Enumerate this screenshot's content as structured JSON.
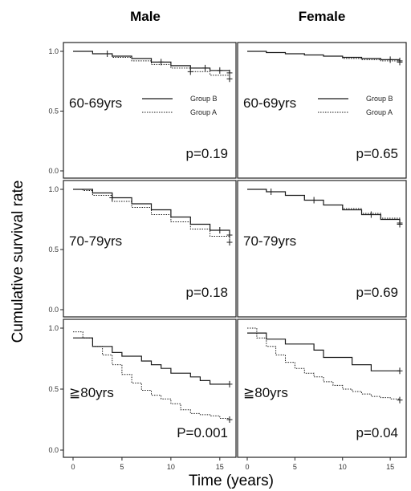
{
  "figure": {
    "column_titles": [
      "Male",
      "Female"
    ],
    "ylabel": "Cumulative survival rate",
    "xlabel": "Time (years)",
    "x_ticks": [
      "0",
      "5",
      "10",
      "15"
    ],
    "y_ticks": [
      "0.0",
      "0.5",
      "1.0"
    ]
  },
  "colors": {
    "line": "#1a1a1a",
    "frame": "#222222",
    "background": "#ffffff"
  },
  "chart_data": [
    {
      "type": "line",
      "panel": "male-60-69",
      "age_label": "60-69yrs",
      "p_label": "p=0.19",
      "show_legend": true,
      "legend": [
        "Group B",
        "Group A"
      ],
      "xlim": [
        0,
        16
      ],
      "ylim": [
        0,
        1
      ],
      "series": [
        {
          "name": "Group B",
          "style": "solid",
          "x": [
            0,
            2,
            4,
            6,
            8,
            10,
            12,
            14,
            16
          ],
          "y": [
            1.0,
            0.98,
            0.96,
            0.94,
            0.91,
            0.88,
            0.86,
            0.84,
            0.82
          ],
          "censor_x": [
            3.5,
            9,
            13.5,
            15,
            16
          ]
        },
        {
          "name": "Group A",
          "style": "dotted",
          "x": [
            0,
            2,
            4,
            6,
            8,
            10,
            12,
            14,
            16
          ],
          "y": [
            1.0,
            0.98,
            0.95,
            0.92,
            0.89,
            0.86,
            0.83,
            0.8,
            0.77
          ],
          "censor_x": [
            12,
            16
          ]
        }
      ]
    },
    {
      "type": "line",
      "panel": "female-60-69",
      "age_label": "60-69yrs",
      "p_label": "p=0.65",
      "show_legend": true,
      "legend": [
        "Group B",
        "Group A"
      ],
      "xlim": [
        0,
        16
      ],
      "ylim": [
        0,
        1
      ],
      "series": [
        {
          "name": "Group B",
          "style": "solid",
          "x": [
            0,
            2,
            4,
            6,
            8,
            10,
            12,
            14,
            16
          ],
          "y": [
            1.0,
            0.99,
            0.98,
            0.97,
            0.96,
            0.95,
            0.94,
            0.93,
            0.92
          ],
          "censor_x": [
            15,
            16
          ]
        },
        {
          "name": "Group A",
          "style": "dotted",
          "x": [
            0,
            2,
            4,
            6,
            8,
            10,
            12,
            14,
            16
          ],
          "y": [
            1.0,
            0.99,
            0.98,
            0.97,
            0.96,
            0.94,
            0.93,
            0.92,
            0.91
          ],
          "censor_x": [
            16
          ]
        }
      ]
    },
    {
      "type": "line",
      "panel": "male-70-79",
      "age_label": "70-79yrs",
      "p_label": "p=0.18",
      "show_legend": false,
      "legend": [],
      "xlim": [
        0,
        16
      ],
      "ylim": [
        0,
        1
      ],
      "series": [
        {
          "name": "Group B",
          "style": "solid",
          "x": [
            0,
            1,
            2,
            4,
            6,
            8,
            10,
            12,
            14,
            16
          ],
          "y": [
            1.0,
            1.0,
            0.97,
            0.93,
            0.88,
            0.83,
            0.77,
            0.71,
            0.66,
            0.62
          ],
          "censor_x": [
            4,
            15,
            16
          ]
        },
        {
          "name": "Group A",
          "style": "dotted",
          "x": [
            0,
            1,
            2,
            4,
            6,
            8,
            10,
            12,
            14,
            16
          ],
          "y": [
            1.0,
            0.99,
            0.95,
            0.9,
            0.85,
            0.79,
            0.73,
            0.67,
            0.61,
            0.56
          ],
          "censor_x": [
            16
          ]
        }
      ]
    },
    {
      "type": "line",
      "panel": "female-70-79",
      "age_label": "70-79yrs",
      "p_label": "p=0.69",
      "show_legend": false,
      "legend": [],
      "xlim": [
        0,
        16
      ],
      "ylim": [
        0,
        1
      ],
      "series": [
        {
          "name": "Group B",
          "style": "solid",
          "x": [
            0,
            2,
            4,
            6,
            8,
            10,
            12,
            14,
            16
          ],
          "y": [
            1.0,
            0.98,
            0.95,
            0.91,
            0.87,
            0.83,
            0.79,
            0.75,
            0.71
          ],
          "censor_x": [
            2.5,
            7,
            13,
            16
          ]
        },
        {
          "name": "Group A",
          "style": "dotted",
          "x": [
            0,
            2,
            4,
            6,
            8,
            10,
            12,
            14,
            16
          ],
          "y": [
            1.0,
            0.98,
            0.95,
            0.91,
            0.87,
            0.84,
            0.8,
            0.76,
            0.72
          ],
          "censor_x": [
            16
          ]
        }
      ]
    },
    {
      "type": "line",
      "panel": "male-80",
      "age_label": "≧80yrs",
      "p_label": "P=0.001",
      "show_legend": false,
      "legend": [],
      "xlim": [
        0,
        16
      ],
      "ylim": [
        0,
        1
      ],
      "series": [
        {
          "name": "Group B",
          "style": "solid",
          "x": [
            0,
            1,
            2,
            3,
            4,
            5,
            7,
            8,
            9,
            10,
            12,
            13,
            14,
            16
          ],
          "y": [
            0.92,
            0.92,
            0.85,
            0.85,
            0.8,
            0.77,
            0.73,
            0.7,
            0.67,
            0.63,
            0.6,
            0.57,
            0.54,
            0.54
          ],
          "censor_x": [
            16
          ]
        },
        {
          "name": "Group A",
          "style": "dotted",
          "x": [
            0,
            1,
            2,
            3,
            4,
            5,
            6,
            7,
            8,
            9,
            10,
            11,
            12,
            13,
            14,
            15,
            16
          ],
          "y": [
            0.97,
            0.92,
            0.85,
            0.78,
            0.7,
            0.62,
            0.55,
            0.49,
            0.45,
            0.42,
            0.38,
            0.33,
            0.3,
            0.29,
            0.28,
            0.26,
            0.25
          ],
          "censor_x": [
            16
          ]
        }
      ]
    },
    {
      "type": "line",
      "panel": "female-80",
      "age_label": "≧80yrs",
      "p_label": "p=0.04",
      "show_legend": false,
      "legend": [],
      "xlim": [
        0,
        16
      ],
      "ylim": [
        0,
        1
      ],
      "series": [
        {
          "name": "Group B",
          "style": "solid",
          "x": [
            0,
            1,
            2,
            3,
            4,
            5,
            6,
            7,
            8,
            9,
            10,
            11,
            12,
            13,
            16
          ],
          "y": [
            0.96,
            0.96,
            0.91,
            0.91,
            0.87,
            0.87,
            0.87,
            0.82,
            0.76,
            0.76,
            0.76,
            0.7,
            0.7,
            0.65,
            0.65
          ],
          "censor_x": [
            16
          ]
        },
        {
          "name": "Group A",
          "style": "dotted",
          "x": [
            0,
            1,
            2,
            3,
            4,
            5,
            6,
            7,
            8,
            9,
            10,
            11,
            12,
            13,
            14,
            15,
            16
          ],
          "y": [
            1.0,
            0.92,
            0.85,
            0.78,
            0.72,
            0.67,
            0.63,
            0.6,
            0.56,
            0.53,
            0.5,
            0.48,
            0.46,
            0.44,
            0.43,
            0.42,
            0.41
          ],
          "censor_x": [
            16
          ]
        }
      ]
    }
  ]
}
